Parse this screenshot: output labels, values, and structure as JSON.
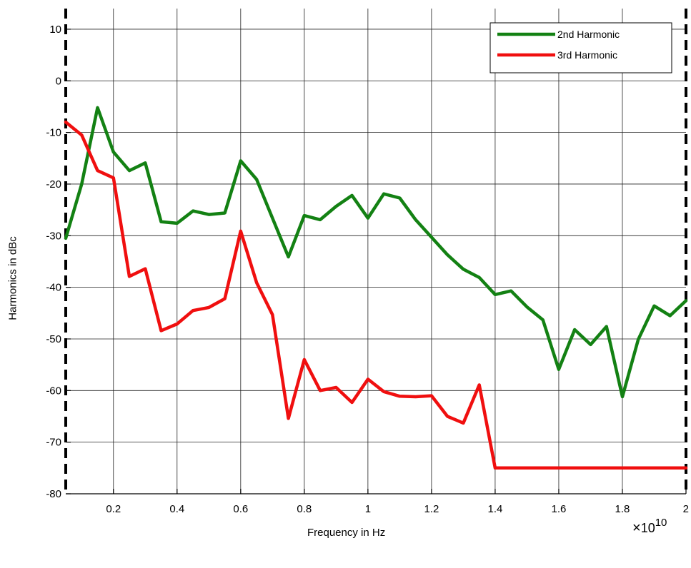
{
  "chart_data": {
    "type": "line",
    "xlabel": "Frequency in Hz",
    "ylabel": "Harmonics in dBc",
    "x_multiplier_base": "10",
    "x_multiplier_exp": "10",
    "xlim": [
      0.05,
      2.0
    ],
    "ylim": [
      -80,
      14
    ],
    "xticks": [
      0.2,
      0.4,
      0.6,
      0.8,
      1.0,
      1.2,
      1.4,
      1.6,
      1.8,
      2.0
    ],
    "xtick_labels": [
      "0.2",
      "0.4",
      "0.6",
      "0.8",
      "1",
      "1.2",
      "1.4",
      "1.6",
      "1.8",
      "2"
    ],
    "yticks": [
      10,
      0,
      -10,
      -20,
      -30,
      -40,
      -50,
      -60,
      -70,
      -80
    ],
    "ytick_labels": [
      "10",
      "0",
      "-10",
      "-20",
      "-30",
      "-40",
      "-50",
      "-60",
      "-70",
      "-80"
    ],
    "grid": true,
    "legend_position": "top-right",
    "x": [
      0.05,
      0.1,
      0.15,
      0.2,
      0.25,
      0.3,
      0.35,
      0.4,
      0.45,
      0.5,
      0.55,
      0.6,
      0.65,
      0.7,
      0.75,
      0.8,
      0.85,
      0.9,
      0.95,
      1.0,
      1.05,
      1.1,
      1.15,
      1.2,
      1.25,
      1.3,
      1.35,
      1.4,
      1.45,
      1.5,
      1.55,
      1.6,
      1.65,
      1.7,
      1.75,
      1.8,
      1.85,
      1.9,
      1.95,
      2.0
    ],
    "series": [
      {
        "name": "2nd Harmonic",
        "color": "#138113",
        "values": [
          -30.5,
          -20,
          -5.2,
          -13.8,
          -17.4,
          -15.9,
          -27.3,
          -27.6,
          -25.2,
          -25.9,
          -25.6,
          -15.5,
          -19.1,
          -26.6,
          -34.1,
          -26.1,
          -26.9,
          -24.3,
          -22.2,
          -26.6,
          -21.9,
          -22.7,
          -26.9,
          -30.3,
          -33.7,
          -36.5,
          -38.1,
          -41.4,
          -40.7,
          -43.8,
          -46.3,
          -55.9,
          -48.2,
          -51.1,
          -47.6,
          -61.2,
          -50.1,
          -43.6,
          -45.5,
          -42.6
        ]
      },
      {
        "name": "3rd Harmonic",
        "color": "#f00f0f",
        "values": [
          -8,
          -10.5,
          -17.4,
          -18.8,
          -37.9,
          -36.4,
          -48.4,
          -47.1,
          -44.5,
          -43.9,
          -42.2,
          -29.1,
          -39.1,
          -45.3,
          -65.4,
          -54,
          -60,
          -59.4,
          -62.3,
          -57.8,
          -60.2,
          -61.1,
          -61.2,
          -61,
          -65,
          -66.3,
          -58.9,
          -75,
          -75,
          -75,
          -75,
          -75,
          -75,
          -75,
          -75,
          -75,
          -75,
          -75,
          -75,
          -75
        ]
      }
    ]
  }
}
